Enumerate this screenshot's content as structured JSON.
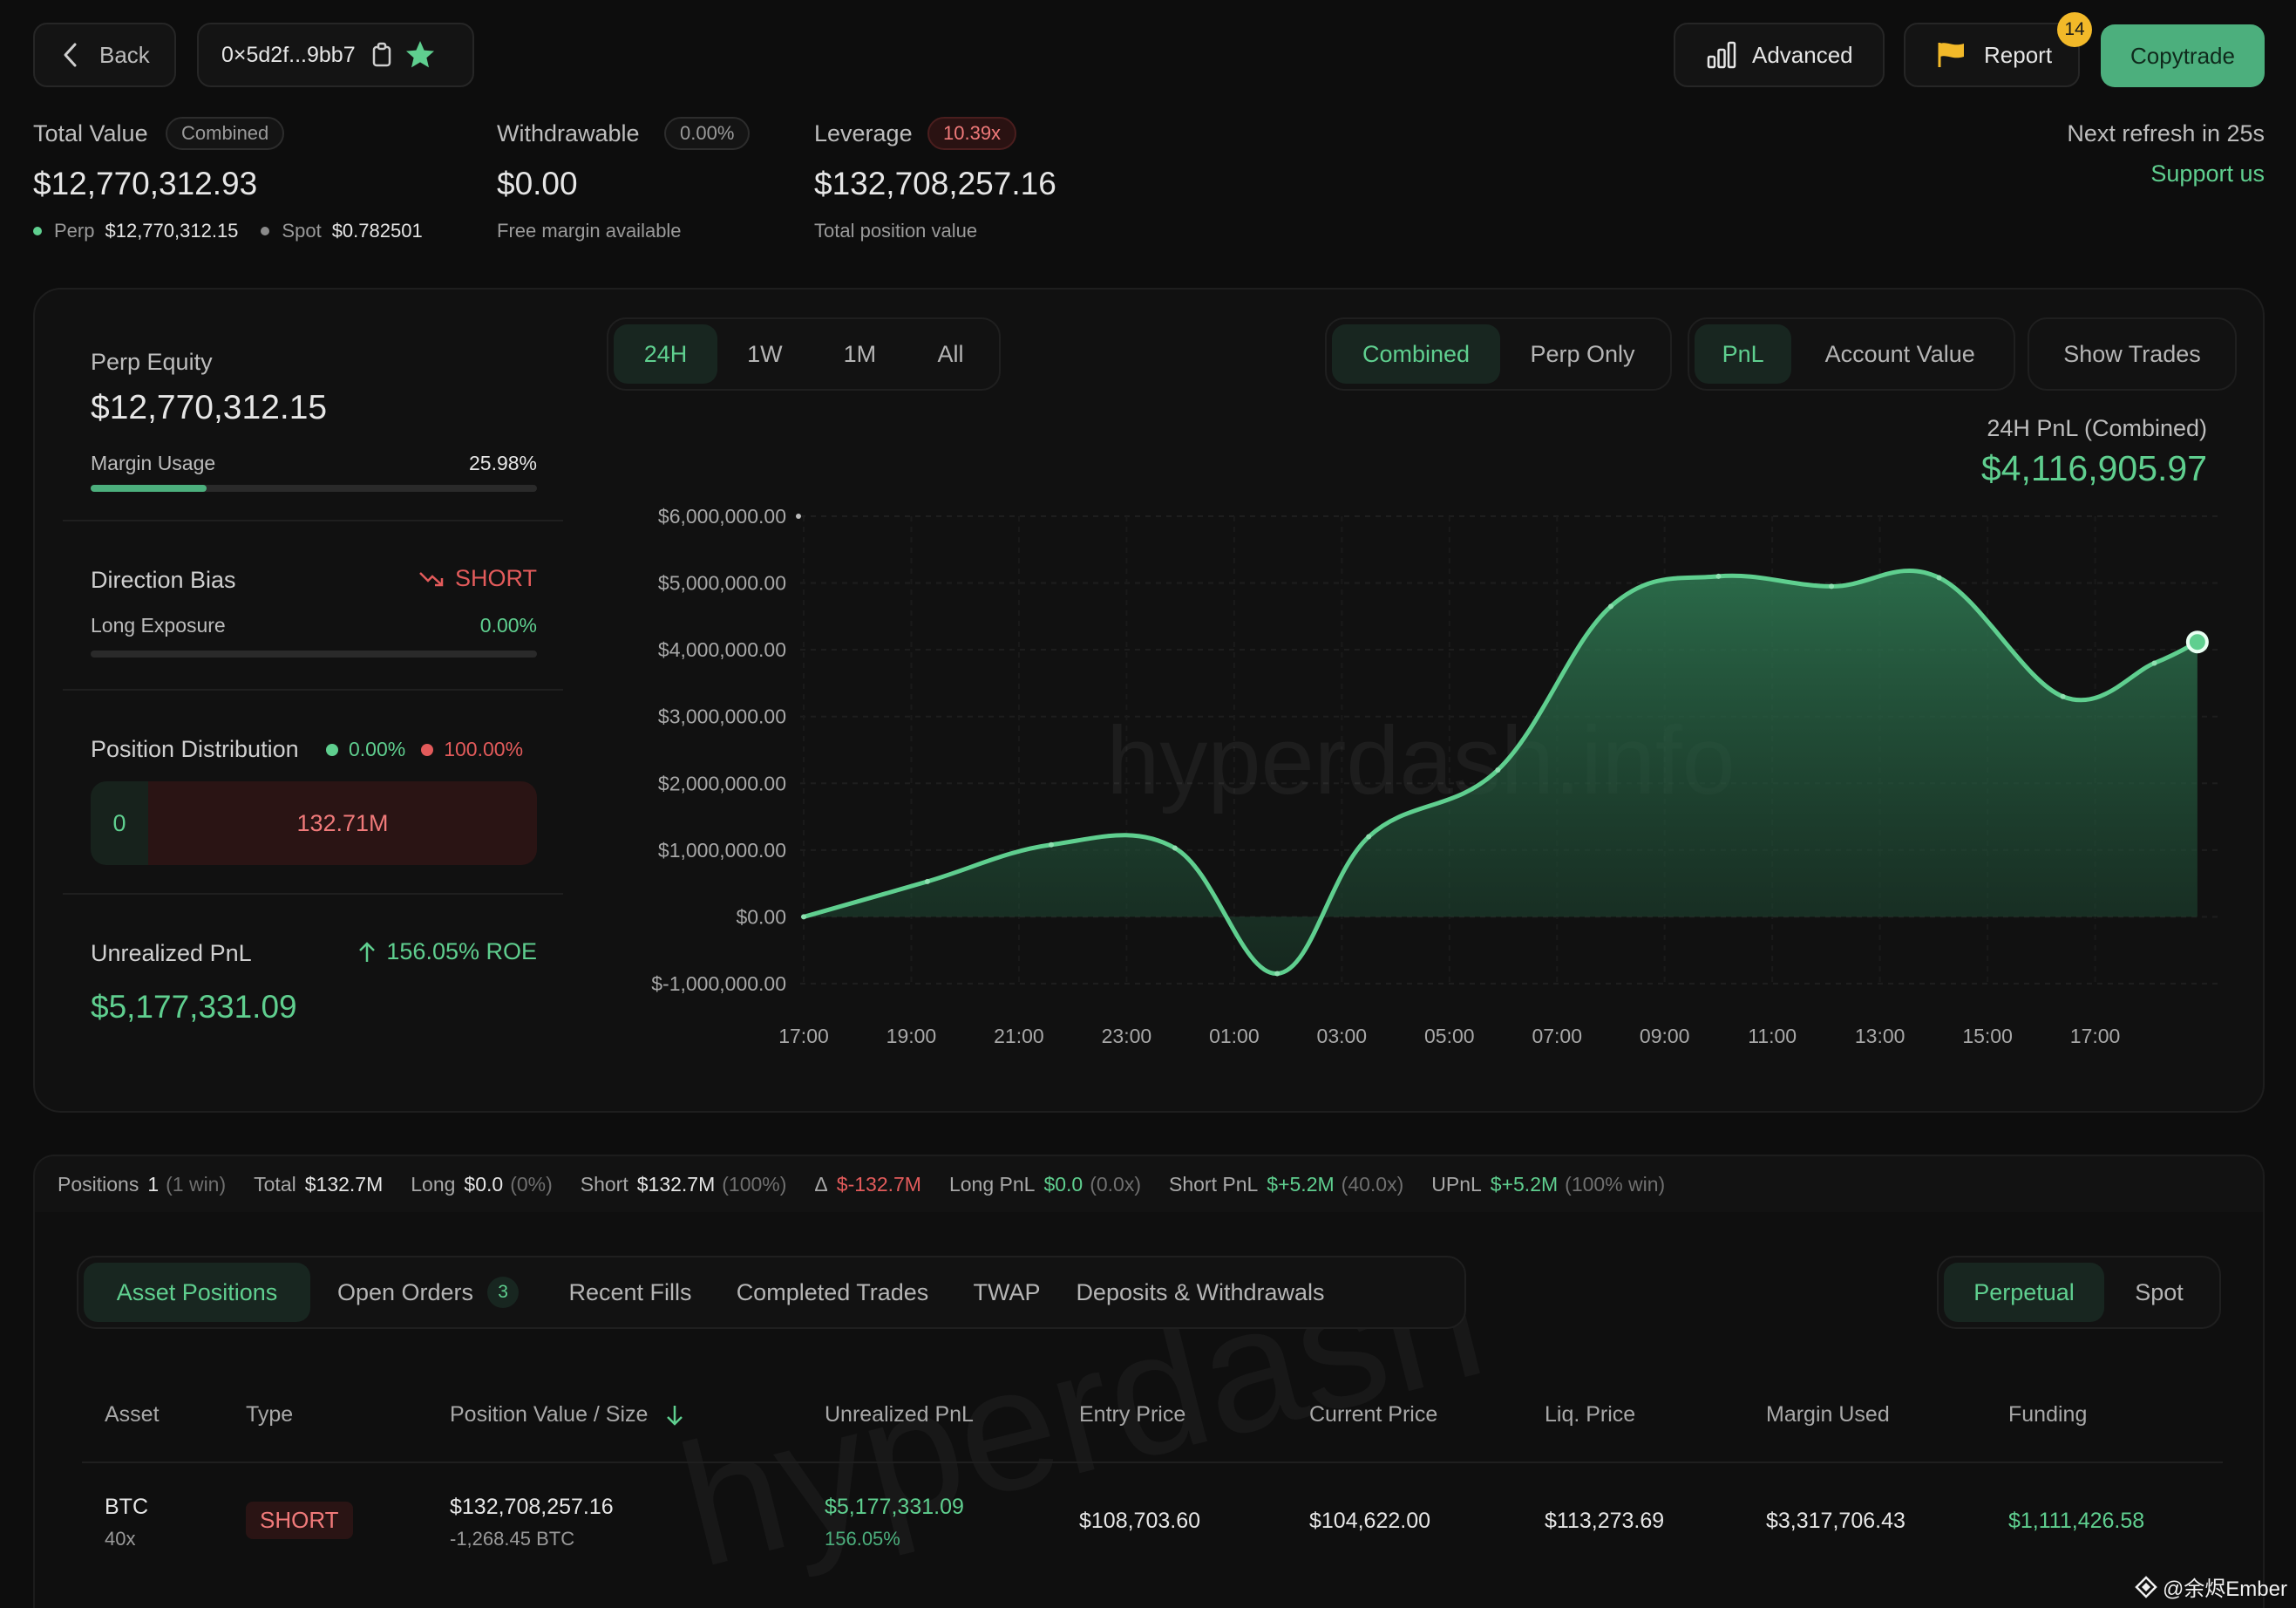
{
  "header": {
    "back_label": "Back",
    "address": "0×5d2f...9bb7",
    "advanced_label": "Advanced",
    "report_label": "Report",
    "report_badge": "14",
    "copytrade_label": "Copytrade",
    "refresh_text": "Next refresh in 25s",
    "support_label": "Support us"
  },
  "stats": {
    "total_value_label": "Total Value",
    "total_value_tag": "Combined",
    "total_value": "$12,770,312.93",
    "perp_label": "Perp",
    "perp_value": "$12,770,312.15",
    "spot_label": "Spot",
    "spot_value": "$0.782501",
    "withdrawable_label": "Withdrawable",
    "withdrawable_tag": "0.00%",
    "withdrawable_value": "$0.00",
    "withdrawable_sub": "Free margin available",
    "leverage_label": "Leverage",
    "leverage_tag": "10.39x",
    "leverage_value": "$132,708,257.16",
    "leverage_sub": "Total position value"
  },
  "left_panel": {
    "perp_equity_label": "Perp Equity",
    "perp_equity_value": "$12,770,312.15",
    "margin_usage_label": "Margin Usage",
    "margin_usage_value": "25.98%",
    "margin_usage_fraction": 0.2598,
    "direction_bias_label": "Direction Bias",
    "direction_bias_value": "SHORT",
    "long_exposure_label": "Long Exposure",
    "long_exposure_value": "0.00%",
    "position_distribution_label": "Position Distribution",
    "dist_long_pct": "0.00%",
    "dist_short_pct": "100.00%",
    "dist_long_value": "0",
    "dist_short_value": "132.71M",
    "upnl_label": "Unrealized PnL",
    "upnl_roe": "156.05% ROE",
    "upnl_value": "$5,177,331.09"
  },
  "chart_controls": {
    "ranges": [
      "24H",
      "1W",
      "1M",
      "All"
    ],
    "mode": [
      "Combined",
      "Perp Only"
    ],
    "metric": [
      "PnL",
      "Account Value"
    ],
    "show_trades": "Show Trades",
    "pnl_title": "24H PnL (Combined)",
    "pnl_value": "$4,116,905.97",
    "watermark": "hyperdash.info"
  },
  "chart_data": {
    "type": "area",
    "title": "24H PnL (Combined)",
    "x_tick_labels": [
      "17:00",
      "19:00",
      "21:00",
      "23:00",
      "01:00",
      "03:00",
      "05:00",
      "07:00",
      "09:00",
      "11:00",
      "13:00",
      "15:00",
      "17:00"
    ],
    "y_tick_labels": [
      "$6,000,000.00",
      "$5,000,000.00",
      "$4,000,000.00",
      "$3,000,000.00",
      "$2,000,000.00",
      "$1,000,000.00",
      "$0.00",
      "$-1,000,000.00"
    ],
    "ylim": [
      -1000000,
      6000000
    ],
    "x_hours": [
      0,
      2.3,
      4.6,
      6.9,
      8.8,
      10.5,
      12.9,
      15.0,
      17.0,
      19.1,
      21.1,
      23.4,
      25.1,
      25.9
    ],
    "values": [
      0,
      530000,
      1080000,
      1030000,
      -850000,
      1200000,
      2200000,
      4650000,
      5100000,
      4950000,
      5080000,
      3300000,
      3800000,
      4116905.97
    ],
    "grid": true
  },
  "summary": {
    "positions_label": "Positions",
    "positions_value": "1",
    "positions_paren": "(1 win)",
    "total_label": "Total",
    "total_value": "$132.7M",
    "long_label": "Long",
    "long_value": "$0.0",
    "long_paren": "(0%)",
    "short_label": "Short",
    "short_value": "$132.7M",
    "short_paren": "(100%)",
    "delta_label": "Δ",
    "delta_value": "$-132.7M",
    "long_pnl_label": "Long PnL",
    "long_pnl_value": "$0.0",
    "long_pnl_paren": "(0.0x)",
    "short_pnl_label": "Short PnL",
    "short_pnl_value": "$+5.2M",
    "short_pnl_paren": "(40.0x)",
    "upnl_label": "UPnL",
    "upnl_value": "$+5.2M",
    "upnl_paren": "(100% win)"
  },
  "tabs": {
    "asset_positions": "Asset Positions",
    "open_orders": "Open Orders",
    "open_orders_count": "3",
    "recent_fills": "Recent Fills",
    "completed_trades": "Completed Trades",
    "twap": "TWAP",
    "deposits": "Deposits & Withdrawals",
    "perpetual": "Perpetual",
    "spot": "Spot"
  },
  "table": {
    "headers": [
      "Asset",
      "Type",
      "Position Value / Size",
      "Unrealized PnL",
      "Entry Price",
      "Current Price",
      "Liq. Price",
      "Margin Used",
      "Funding"
    ],
    "row": {
      "asset": "BTC",
      "leverage": "40x",
      "type": "SHORT",
      "position_value": "$132,708,257.16",
      "size": "-1,268.45 BTC",
      "upnl": "$5,177,331.09",
      "upnl_pct": "156.05%",
      "entry": "$108,703.60",
      "current": "$104,622.00",
      "liq": "$113,273.69",
      "margin": "$3,317,706.43",
      "funding": "$1,111,426.58"
    },
    "watermark": "hyperdash"
  },
  "credit": "@余烬Ember"
}
